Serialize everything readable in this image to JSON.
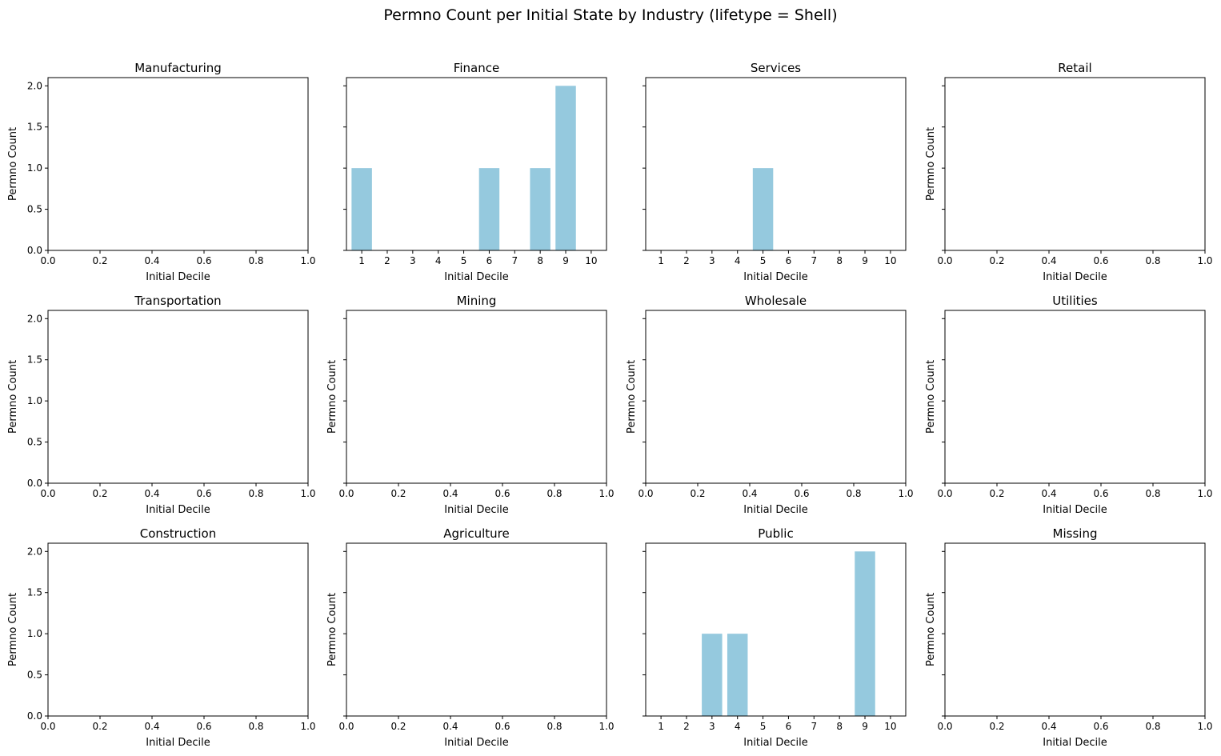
{
  "figure": {
    "title": "Permno Count per Initial State by Industry (lifetype = Shell)"
  },
  "chart_data": [
    {
      "type": "bar",
      "title": "Manufacturing",
      "xlabel": "Initial Decile",
      "ylabel": "Permno Count",
      "has_data": false,
      "xticks": [
        "0.0",
        "0.2",
        "0.4",
        "0.6",
        "0.8",
        "1.0"
      ],
      "categories": [],
      "values": [],
      "ylim": [
        0,
        2.1
      ],
      "yticks": [
        "0.0",
        "0.5",
        "1.0",
        "1.5",
        "2.0"
      ],
      "show_ylabel": true,
      "show_ytick_labels": true
    },
    {
      "type": "bar",
      "title": "Finance",
      "xlabel": "Initial Decile",
      "ylabel": "Permno Count",
      "has_data": true,
      "xticks": [
        "1",
        "2",
        "3",
        "4",
        "5",
        "6",
        "7",
        "8",
        "9",
        "10"
      ],
      "categories": [
        1,
        2,
        3,
        4,
        5,
        6,
        7,
        8,
        9,
        10
      ],
      "values": [
        1,
        0,
        0,
        0,
        0,
        1,
        0,
        1,
        2,
        0
      ],
      "ylim": [
        0,
        2.1
      ],
      "yticks": [
        "0.0",
        "0.5",
        "1.0",
        "1.5",
        "2.0"
      ],
      "show_ylabel": false,
      "show_ytick_labels": false
    },
    {
      "type": "bar",
      "title": "Services",
      "xlabel": "Initial Decile",
      "ylabel": "Permno Count",
      "has_data": true,
      "xticks": [
        "1",
        "2",
        "3",
        "4",
        "5",
        "6",
        "7",
        "8",
        "9",
        "10"
      ],
      "categories": [
        1,
        2,
        3,
        4,
        5,
        6,
        7,
        8,
        9,
        10
      ],
      "values": [
        0,
        0,
        0,
        0,
        1,
        0,
        0,
        0,
        0,
        0
      ],
      "ylim": [
        0,
        2.1
      ],
      "yticks": [
        "0.0",
        "0.5",
        "1.0",
        "1.5",
        "2.0"
      ],
      "show_ylabel": false,
      "show_ytick_labels": false
    },
    {
      "type": "bar",
      "title": "Retail",
      "xlabel": "Initial Decile",
      "ylabel": "Permno Count",
      "has_data": false,
      "xticks": [
        "0.0",
        "0.2",
        "0.4",
        "0.6",
        "0.8",
        "1.0"
      ],
      "categories": [],
      "values": [],
      "ylim": [
        0,
        2.1
      ],
      "yticks": [
        "0.0",
        "0.5",
        "1.0",
        "1.5",
        "2.0"
      ],
      "show_ylabel": true,
      "show_ytick_labels": false
    },
    {
      "type": "bar",
      "title": "Transportation",
      "xlabel": "Initial Decile",
      "ylabel": "Permno Count",
      "has_data": false,
      "xticks": [
        "0.0",
        "0.2",
        "0.4",
        "0.6",
        "0.8",
        "1.0"
      ],
      "categories": [],
      "values": [],
      "ylim": [
        0,
        2.1
      ],
      "yticks": [
        "0.0",
        "0.5",
        "1.0",
        "1.5",
        "2.0"
      ],
      "show_ylabel": true,
      "show_ytick_labels": true
    },
    {
      "type": "bar",
      "title": "Mining",
      "xlabel": "Initial Decile",
      "ylabel": "Permno Count",
      "has_data": false,
      "xticks": [
        "0.0",
        "0.2",
        "0.4",
        "0.6",
        "0.8",
        "1.0"
      ],
      "categories": [],
      "values": [],
      "ylim": [
        0,
        2.1
      ],
      "yticks": [
        "0.0",
        "0.5",
        "1.0",
        "1.5",
        "2.0"
      ],
      "show_ylabel": true,
      "show_ytick_labels": false
    },
    {
      "type": "bar",
      "title": "Wholesale",
      "xlabel": "Initial Decile",
      "ylabel": "Permno Count",
      "has_data": false,
      "xticks": [
        "0.0",
        "0.2",
        "0.4",
        "0.6",
        "0.8",
        "1.0"
      ],
      "categories": [],
      "values": [],
      "ylim": [
        0,
        2.1
      ],
      "yticks": [
        "0.0",
        "0.5",
        "1.0",
        "1.5",
        "2.0"
      ],
      "show_ylabel": true,
      "show_ytick_labels": false
    },
    {
      "type": "bar",
      "title": "Utilities",
      "xlabel": "Initial Decile",
      "ylabel": "Permno Count",
      "has_data": false,
      "xticks": [
        "0.0",
        "0.2",
        "0.4",
        "0.6",
        "0.8",
        "1.0"
      ],
      "categories": [],
      "values": [],
      "ylim": [
        0,
        2.1
      ],
      "yticks": [
        "0.0",
        "0.5",
        "1.0",
        "1.5",
        "2.0"
      ],
      "show_ylabel": true,
      "show_ytick_labels": false
    },
    {
      "type": "bar",
      "title": "Construction",
      "xlabel": "Initial Decile",
      "ylabel": "Permno Count",
      "has_data": false,
      "xticks": [
        "0.0",
        "0.2",
        "0.4",
        "0.6",
        "0.8",
        "1.0"
      ],
      "categories": [],
      "values": [],
      "ylim": [
        0,
        2.1
      ],
      "yticks": [
        "0.0",
        "0.5",
        "1.0",
        "1.5",
        "2.0"
      ],
      "show_ylabel": true,
      "show_ytick_labels": true
    },
    {
      "type": "bar",
      "title": "Agriculture",
      "xlabel": "Initial Decile",
      "ylabel": "Permno Count",
      "has_data": false,
      "xticks": [
        "0.0",
        "0.2",
        "0.4",
        "0.6",
        "0.8",
        "1.0"
      ],
      "categories": [],
      "values": [],
      "ylim": [
        0,
        2.1
      ],
      "yticks": [
        "0.0",
        "0.5",
        "1.0",
        "1.5",
        "2.0"
      ],
      "show_ylabel": true,
      "show_ytick_labels": false
    },
    {
      "type": "bar",
      "title": "Public",
      "xlabel": "Initial Decile",
      "ylabel": "Permno Count",
      "has_data": true,
      "xticks": [
        "1",
        "2",
        "3",
        "4",
        "5",
        "6",
        "7",
        "8",
        "9",
        "10"
      ],
      "categories": [
        1,
        2,
        3,
        4,
        5,
        6,
        7,
        8,
        9,
        10
      ],
      "values": [
        0,
        0,
        1,
        1,
        0,
        0,
        0,
        0,
        2,
        0
      ],
      "ylim": [
        0,
        2.1
      ],
      "yticks": [
        "0.0",
        "0.5",
        "1.0",
        "1.5",
        "2.0"
      ],
      "show_ylabel": false,
      "show_ytick_labels": false
    },
    {
      "type": "bar",
      "title": "Missing",
      "xlabel": "Initial Decile",
      "ylabel": "Permno Count",
      "has_data": false,
      "xticks": [
        "0.0",
        "0.2",
        "0.4",
        "0.6",
        "0.8",
        "1.0"
      ],
      "categories": [],
      "values": [],
      "ylim": [
        0,
        2.1
      ],
      "yticks": [
        "0.0",
        "0.5",
        "1.0",
        "1.5",
        "2.0"
      ],
      "show_ylabel": true,
      "show_ytick_labels": false
    }
  ],
  "colors": {
    "bar": "#95c9de",
    "axis": "#000000"
  }
}
